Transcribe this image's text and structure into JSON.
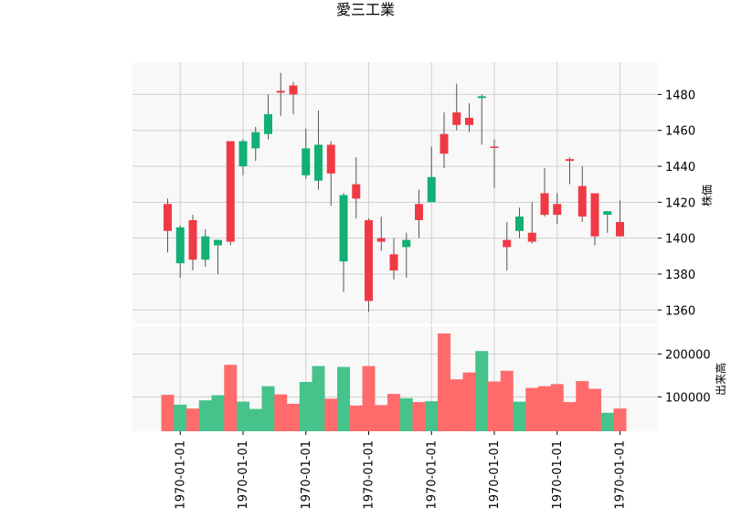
{
  "chart_data": {
    "type": "candlestick",
    "title": "愛三工業",
    "price_panel": {
      "ylabel": "株価",
      "ylim": [
        1352,
        1498
      ],
      "yticks": [
        1360,
        1380,
        1400,
        1420,
        1440,
        1460,
        1480
      ],
      "grid": true
    },
    "volume_panel": {
      "ylabel": "出来高",
      "ylim": [
        20000,
        265000
      ],
      "yticks": [
        100000,
        200000
      ],
      "grid": true
    },
    "x_tick_labels": [
      "1970-01-01",
      "1970-01-01",
      "1970-01-01",
      "1970-01-01",
      "1970-01-01",
      "1970-01-01",
      "1970-01-01",
      "1970-01-01"
    ],
    "x_tick_positions": [
      1,
      6,
      11,
      16,
      21,
      26,
      31,
      36
    ],
    "colors": {
      "up": "#EF3A45",
      "down": "#12B074",
      "background": "#F8F8F8",
      "grid": "#D0D0D0",
      "wick": "#555555"
    },
    "candles": [
      {
        "open": 1404,
        "high": 1422,
        "low": 1392,
        "close": 1419,
        "volume": 105000
      },
      {
        "open": 1406,
        "high": 1407,
        "low": 1378,
        "close": 1386,
        "volume": 82000
      },
      {
        "open": 1388,
        "high": 1413,
        "low": 1382,
        "close": 1410,
        "volume": 73000
      },
      {
        "open": 1401,
        "high": 1405,
        "low": 1384,
        "close": 1388,
        "volume": 92000
      },
      {
        "open": 1399,
        "high": 1399,
        "low": 1380,
        "close": 1396,
        "volume": 104000
      },
      {
        "open": 1398,
        "high": 1454,
        "low": 1396,
        "close": 1454,
        "volume": 175000
      },
      {
        "open": 1454,
        "high": 1455,
        "low": 1435,
        "close": 1440,
        "volume": 89000
      },
      {
        "open": 1459,
        "high": 1462,
        "low": 1443,
        "close": 1450,
        "volume": 72000
      },
      {
        "open": 1469,
        "high": 1480,
        "low": 1455,
        "close": 1458,
        "volume": 125000
      },
      {
        "open": 1481,
        "high": 1492,
        "low": 1468,
        "close": 1482,
        "volume": 106000
      },
      {
        "open": 1480,
        "high": 1487,
        "low": 1469,
        "close": 1485,
        "volume": 84000
      },
      {
        "open": 1450,
        "high": 1461,
        "low": 1433,
        "close": 1435,
        "volume": 135000
      },
      {
        "open": 1452,
        "high": 1471,
        "low": 1427,
        "close": 1432,
        "volume": 172000
      },
      {
        "open": 1436,
        "high": 1454,
        "low": 1418,
        "close": 1452,
        "volume": 96000
      },
      {
        "open": 1424,
        "high": 1425,
        "low": 1370,
        "close": 1387,
        "volume": 170000
      },
      {
        "open": 1422,
        "high": 1445,
        "low": 1411,
        "close": 1430,
        "volume": 80000
      },
      {
        "open": 1365,
        "high": 1411,
        "low": 1359,
        "close": 1410,
        "volume": 172000
      },
      {
        "open": 1398,
        "high": 1412,
        "low": 1393,
        "close": 1400,
        "volume": 81000
      },
      {
        "open": 1382,
        "high": 1400,
        "low": 1377,
        "close": 1391,
        "volume": 107000
      },
      {
        "open": 1399,
        "high": 1403,
        "low": 1378,
        "close": 1395,
        "volume": 97000
      },
      {
        "open": 1410,
        "high": 1427,
        "low": 1400,
        "close": 1419,
        "volume": 88000
      },
      {
        "open": 1434,
        "high": 1451,
        "low": 1420,
        "close": 1420,
        "volume": 90000
      },
      {
        "open": 1447,
        "high": 1470,
        "low": 1439,
        "close": 1458,
        "volume": 248000
      },
      {
        "open": 1463,
        "high": 1486,
        "low": 1460,
        "close": 1470,
        "volume": 141000
      },
      {
        "open": 1463,
        "high": 1475,
        "low": 1459,
        "close": 1467,
        "volume": 157000
      },
      {
        "open": 1479,
        "high": 1480,
        "low": 1452,
        "close": 1478,
        "volume": 207000
      },
      {
        "open": 1451,
        "high": 1455,
        "low": 1428,
        "close": 1451,
        "volume": 136000
      },
      {
        "open": 1395,
        "high": 1409,
        "low": 1382,
        "close": 1399,
        "volume": 161000
      },
      {
        "open": 1412,
        "high": 1417,
        "low": 1400,
        "close": 1404,
        "volume": 89000
      },
      {
        "open": 1398,
        "high": 1420,
        "low": 1397,
        "close": 1403,
        "volume": 121000
      },
      {
        "open": 1413,
        "high": 1439,
        "low": 1412,
        "close": 1425,
        "volume": 125000
      },
      {
        "open": 1413,
        "high": 1425,
        "low": 1408,
        "close": 1419,
        "volume": 130000
      },
      {
        "open": 1443,
        "high": 1445,
        "low": 1430,
        "close": 1444,
        "volume": 88000
      },
      {
        "open": 1412,
        "high": 1440,
        "low": 1409,
        "close": 1429,
        "volume": 137000
      },
      {
        "open": 1401,
        "high": 1425,
        "low": 1396,
        "close": 1425,
        "volume": 119000
      },
      {
        "open": 1415,
        "high": 1415,
        "low": 1403,
        "close": 1413,
        "volume": 63000
      },
      {
        "open": 1401,
        "high": 1421,
        "low": 1401,
        "close": 1409,
        "volume": 73000
      }
    ]
  }
}
